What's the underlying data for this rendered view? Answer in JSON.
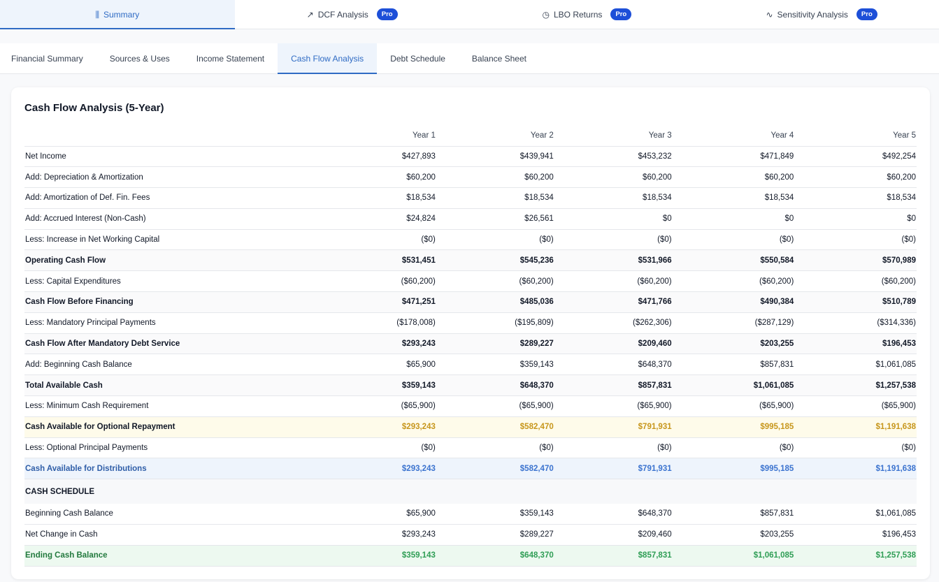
{
  "top_tabs": [
    {
      "label": "Summary",
      "icon": "bar-chart-icon",
      "glyph": "⫼",
      "pro": false,
      "active": true
    },
    {
      "label": "DCF Analysis",
      "icon": "trending-up-icon",
      "glyph": "↗",
      "pro": true
    },
    {
      "label": "LBO Returns",
      "icon": "pie-chart-icon",
      "glyph": "◷",
      "pro": true
    },
    {
      "label": "Sensitivity Analysis",
      "icon": "activity-icon",
      "glyph": "∿",
      "pro": true
    }
  ],
  "pro_label": "Pro",
  "sub_tabs": [
    "Financial Summary",
    "Sources & Uses",
    "Income Statement",
    "Cash Flow Analysis",
    "Debt Schedule",
    "Balance Sheet"
  ],
  "active_sub_tab": "Cash Flow Analysis",
  "card": {
    "title": "Cash Flow Analysis (5-Year)"
  },
  "table": {
    "headers": [
      "",
      "Year 1",
      "Year 2",
      "Year 3",
      "Year 4",
      "Year 5"
    ],
    "rows": [
      {
        "label": "Net Income",
        "style": "",
        "values": [
          "$427,893",
          "$439,941",
          "$453,232",
          "$471,849",
          "$492,254"
        ]
      },
      {
        "label": "Add: Depreciation & Amortization",
        "style": "",
        "values": [
          "$60,200",
          "$60,200",
          "$60,200",
          "$60,200",
          "$60,200"
        ]
      },
      {
        "label": "Add: Amortization of Def. Fin. Fees",
        "style": "",
        "values": [
          "$18,534",
          "$18,534",
          "$18,534",
          "$18,534",
          "$18,534"
        ]
      },
      {
        "label": "Add: Accrued Interest (Non-Cash)",
        "style": "",
        "values": [
          "$24,824",
          "$26,561",
          "$0",
          "$0",
          "$0"
        ]
      },
      {
        "label": "Less: Increase in Net Working Capital",
        "style": "",
        "values": [
          "($0)",
          "($0)",
          "($0)",
          "($0)",
          "($0)"
        ]
      },
      {
        "label": "Operating Cash Flow",
        "style": "bold",
        "values": [
          "$531,451",
          "$545,236",
          "$531,966",
          "$550,584",
          "$570,989"
        ]
      },
      {
        "label": "Less: Capital Expenditures",
        "style": "",
        "values": [
          "($60,200)",
          "($60,200)",
          "($60,200)",
          "($60,200)",
          "($60,200)"
        ]
      },
      {
        "label": "Cash Flow Before Financing",
        "style": "bold",
        "values": [
          "$471,251",
          "$485,036",
          "$471,766",
          "$490,384",
          "$510,789"
        ]
      },
      {
        "label": "Less: Mandatory Principal Payments",
        "style": "",
        "values": [
          "($178,008)",
          "($195,809)",
          "($262,306)",
          "($287,129)",
          "($314,336)"
        ]
      },
      {
        "label": "Cash Flow After Mandatory Debt Service",
        "style": "bold",
        "values": [
          "$293,243",
          "$289,227",
          "$209,460",
          "$203,255",
          "$196,453"
        ]
      },
      {
        "label": "Add: Beginning Cash Balance",
        "style": "",
        "values": [
          "$65,900",
          "$359,143",
          "$648,370",
          "$857,831",
          "$1,061,085"
        ]
      },
      {
        "label": "Total Available Cash",
        "style": "bold",
        "values": [
          "$359,143",
          "$648,370",
          "$857,831",
          "$1,061,085",
          "$1,257,538"
        ]
      },
      {
        "label": "Less: Minimum Cash Requirement",
        "style": "",
        "values": [
          "($65,900)",
          "($65,900)",
          "($65,900)",
          "($65,900)",
          "($65,900)"
        ]
      },
      {
        "label": "Cash Available for Optional Repayment",
        "style": "yellow",
        "values": [
          "$293,243",
          "$582,470",
          "$791,931",
          "$995,185",
          "$1,191,638"
        ]
      },
      {
        "label": "Less: Optional Principal Payments",
        "style": "",
        "values": [
          "($0)",
          "($0)",
          "($0)",
          "($0)",
          "($0)"
        ]
      },
      {
        "label": "Cash Available for Distributions",
        "style": "blue",
        "values": [
          "$293,243",
          "$582,470",
          "$791,931",
          "$995,185",
          "$1,191,638"
        ]
      },
      {
        "label": "CASH SCHEDULE",
        "style": "section",
        "values": [
          "",
          "",
          "",
          "",
          ""
        ]
      },
      {
        "label": "Beginning Cash Balance",
        "style": "",
        "values": [
          "$65,900",
          "$359,143",
          "$648,370",
          "$857,831",
          "$1,061,085"
        ]
      },
      {
        "label": "Net Change in Cash",
        "style": "",
        "values": [
          "$293,243",
          "$289,227",
          "$209,460",
          "$203,255",
          "$196,453"
        ]
      },
      {
        "label": "Ending Cash Balance",
        "style": "green",
        "values": [
          "$359,143",
          "$648,370",
          "$857,831",
          "$1,061,085",
          "$1,257,538"
        ]
      }
    ]
  }
}
